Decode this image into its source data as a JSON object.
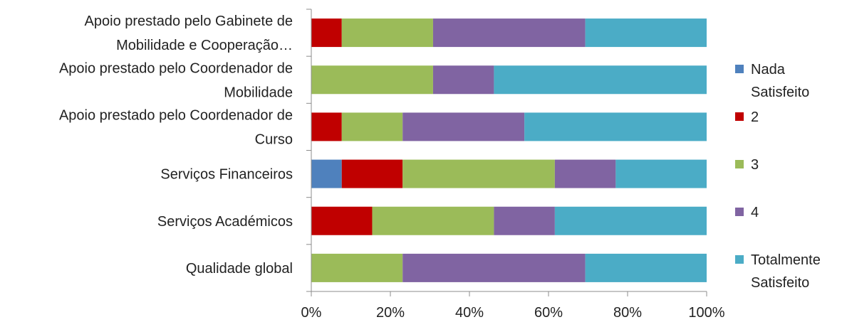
{
  "chart_data": {
    "type": "bar",
    "orientation": "horizontal",
    "stacked": "percent",
    "categories": [
      [
        "Apoio prestado pelo Gabinete de",
        "Mobilidade e Cooperação…"
      ],
      [
        "Apoio prestado pelo Coordenador de",
        "Mobilidade"
      ],
      [
        "Apoio prestado pelo Coordenador de",
        "Curso"
      ],
      [
        "Serviços Financeiros"
      ],
      [
        "Serviços Académicos"
      ],
      [
        "Qualidade global"
      ]
    ],
    "series": [
      {
        "name": [
          "Nada",
          "Satisfeito"
        ],
        "color": "#4F81BD",
        "values": [
          0,
          0,
          0,
          7.7,
          0,
          0
        ]
      },
      {
        "name": [
          "2"
        ],
        "color": "#C00000",
        "values": [
          7.7,
          0,
          7.7,
          15.4,
          15.4,
          0
        ]
      },
      {
        "name": [
          "3"
        ],
        "color": "#9BBB59",
        "values": [
          23.1,
          30.8,
          15.4,
          38.5,
          30.8,
          23.1
        ]
      },
      {
        "name": [
          "4"
        ],
        "color": "#8064A2",
        "values": [
          38.5,
          15.4,
          30.8,
          15.4,
          15.4,
          46.2
        ]
      },
      {
        "name": [
          "Totalmente",
          "Satisfeito"
        ],
        "color": "#4BACC6",
        "values": [
          30.7,
          53.8,
          46.1,
          23.0,
          38.4,
          30.7
        ]
      }
    ],
    "x_ticks": [
      "0%",
      "20%",
      "40%",
      "60%",
      "80%",
      "100%"
    ],
    "xlim": [
      0,
      100
    ],
    "grid": false,
    "legend_position": "right"
  }
}
